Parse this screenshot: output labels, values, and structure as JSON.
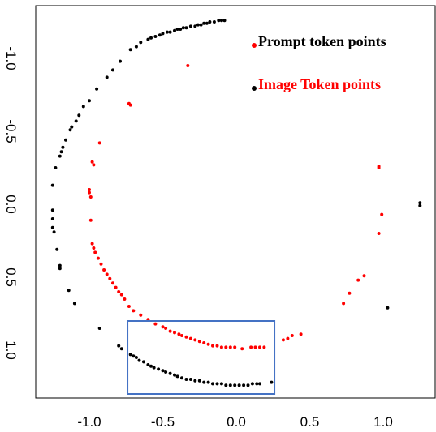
{
  "chart_data": {
    "type": "scatter",
    "title": "",
    "xlabel": "",
    "ylabel": "",
    "xlim": [
      -1.38,
      1.3
    ],
    "ylim": [
      -1.38,
      1.31
    ],
    "y_axis_inverted": true,
    "y_tick_labels_rotated": true,
    "x_ticks": [
      "-1.0",
      "-0.5",
      "0.0",
      "0.5",
      "1.0"
    ],
    "y_ticks": [
      "-1.0",
      "-0.5",
      "0.0",
      "0.5",
      "1.0"
    ],
    "grid": false,
    "legend": {
      "position": "top-right",
      "entries": [
        {
          "marker_color": "#ff0000",
          "label": "Prompt token points",
          "text_color": "#000000"
        },
        {
          "marker_color": "#000000",
          "label": "Image Token points",
          "text_color": "#ff0000"
        }
      ]
    },
    "highlight_box": {
      "color": "#4472c4",
      "x_range": [
        -0.74,
        0.26
      ],
      "y_range": [
        0.8,
        1.3
      ]
    },
    "series": [
      {
        "color": "#ff0000",
        "points": [
          [
            -0.33,
            -0.95
          ],
          [
            -0.73,
            -0.69
          ],
          [
            -0.72,
            -0.68
          ],
          [
            -0.93,
            -0.42
          ],
          [
            -0.98,
            -0.29
          ],
          [
            -0.97,
            -0.27
          ],
          [
            -1.0,
            -0.1
          ],
          [
            -1.0,
            -0.08
          ],
          [
            -0.99,
            -0.05
          ],
          [
            -0.99,
            0.11
          ],
          [
            -0.98,
            0.27
          ],
          [
            -0.97,
            0.3
          ],
          [
            -0.96,
            0.33
          ],
          [
            -0.94,
            0.37
          ],
          [
            -0.92,
            0.41
          ],
          [
            -0.9,
            0.45
          ],
          [
            -0.88,
            0.48
          ],
          [
            -0.86,
            0.51
          ],
          [
            -0.84,
            0.54
          ],
          [
            -0.82,
            0.57
          ],
          [
            -0.8,
            0.6
          ],
          [
            -0.78,
            0.62
          ],
          [
            -0.76,
            0.65
          ],
          [
            -0.73,
            0.7
          ],
          [
            -0.7,
            0.73
          ],
          [
            -0.65,
            0.76
          ],
          [
            -0.6,
            0.79
          ],
          [
            -0.55,
            0.82
          ],
          [
            -0.5,
            0.84
          ],
          [
            -0.48,
            0.85
          ],
          [
            -0.45,
            0.87
          ],
          [
            -0.42,
            0.88
          ],
          [
            -0.39,
            0.89
          ],
          [
            -0.37,
            0.9
          ],
          [
            -0.34,
            0.91
          ],
          [
            -0.31,
            0.92
          ],
          [
            -0.28,
            0.93
          ],
          [
            -0.25,
            0.94
          ],
          [
            -0.22,
            0.95
          ],
          [
            -0.19,
            0.96
          ],
          [
            -0.16,
            0.97
          ],
          [
            -0.13,
            0.97
          ],
          [
            -0.1,
            0.98
          ],
          [
            -0.07,
            0.98
          ],
          [
            -0.04,
            0.98
          ],
          [
            -0.01,
            0.98
          ],
          [
            0.04,
            0.99
          ],
          [
            0.1,
            0.98
          ],
          [
            0.13,
            0.98
          ],
          [
            0.16,
            0.98
          ],
          [
            0.19,
            0.98
          ],
          [
            0.32,
            0.93
          ],
          [
            0.35,
            0.92
          ],
          [
            0.38,
            0.9
          ],
          [
            0.44,
            0.89
          ],
          [
            0.73,
            0.68
          ],
          [
            0.77,
            0.61
          ],
          [
            0.83,
            0.52
          ],
          [
            0.87,
            0.49
          ],
          [
            0.97,
            0.2
          ],
          [
            0.99,
            0.07
          ],
          [
            0.97,
            -0.25
          ],
          [
            0.97,
            -0.26
          ]
        ]
      },
      {
        "color": "#000000",
        "points": [
          [
            -0.08,
            -1.26
          ],
          [
            -0.1,
            -1.26
          ],
          [
            -0.12,
            -1.26
          ],
          [
            -0.15,
            -1.25
          ],
          [
            -0.18,
            -1.25
          ],
          [
            -0.2,
            -1.24
          ],
          [
            -0.22,
            -1.24
          ],
          [
            -0.24,
            -1.23
          ],
          [
            -0.26,
            -1.23
          ],
          [
            -0.28,
            -1.22
          ],
          [
            -0.31,
            -1.22
          ],
          [
            -0.34,
            -1.21
          ],
          [
            -0.36,
            -1.21
          ],
          [
            -0.38,
            -1.2
          ],
          [
            -0.4,
            -1.2
          ],
          [
            -0.42,
            -1.19
          ],
          [
            -0.45,
            -1.18
          ],
          [
            -0.47,
            -1.18
          ],
          [
            -0.5,
            -1.17
          ],
          [
            -0.52,
            -1.16
          ],
          [
            -0.55,
            -1.15
          ],
          [
            -0.58,
            -1.14
          ],
          [
            -0.6,
            -1.13
          ],
          [
            -0.65,
            -1.11
          ],
          [
            -0.68,
            -1.08
          ],
          [
            -0.72,
            -1.06
          ],
          [
            -0.79,
            -0.98
          ],
          [
            -0.84,
            -0.92
          ],
          [
            -0.88,
            -0.87
          ],
          [
            -0.95,
            -0.79
          ],
          [
            -1.0,
            -0.71
          ],
          [
            -1.04,
            -0.67
          ],
          [
            -1.07,
            -0.61
          ],
          [
            -1.09,
            -0.57
          ],
          [
            -1.12,
            -0.53
          ],
          [
            -1.13,
            -0.51
          ],
          [
            -1.16,
            -0.44
          ],
          [
            -1.18,
            -0.39
          ],
          [
            -1.19,
            -0.36
          ],
          [
            -1.2,
            -0.33
          ],
          [
            -1.23,
            -0.25
          ],
          [
            -1.25,
            -0.13
          ],
          [
            -1.25,
            0.04
          ],
          [
            -1.25,
            0.1
          ],
          [
            -1.25,
            0.16
          ],
          [
            -1.24,
            0.19
          ],
          [
            -1.22,
            0.31
          ],
          [
            -1.2,
            0.42
          ],
          [
            -1.2,
            0.44
          ],
          [
            -1.14,
            0.59
          ],
          [
            -1.1,
            0.68
          ],
          [
            -0.93,
            0.85
          ],
          [
            -0.8,
            0.97
          ],
          [
            -0.78,
            0.99
          ],
          [
            -0.72,
            1.03
          ],
          [
            -0.7,
            1.04
          ],
          [
            -0.68,
            1.05
          ],
          [
            -0.66,
            1.07
          ],
          [
            -0.63,
            1.08
          ],
          [
            -0.6,
            1.1
          ],
          [
            -0.58,
            1.11
          ],
          [
            -0.56,
            1.12
          ],
          [
            -0.53,
            1.13
          ],
          [
            -0.5,
            1.14
          ],
          [
            -0.48,
            1.15
          ],
          [
            -0.45,
            1.16
          ],
          [
            -0.42,
            1.17
          ],
          [
            -0.4,
            1.18
          ],
          [
            -0.37,
            1.19
          ],
          [
            -0.34,
            1.2
          ],
          [
            -0.31,
            1.2
          ],
          [
            -0.28,
            1.21
          ],
          [
            -0.25,
            1.21
          ],
          [
            -0.22,
            1.22
          ],
          [
            -0.19,
            1.22
          ],
          [
            -0.16,
            1.23
          ],
          [
            -0.13,
            1.23
          ],
          [
            -0.1,
            1.23
          ],
          [
            -0.07,
            1.24
          ],
          [
            -0.04,
            1.24
          ],
          [
            -0.01,
            1.24
          ],
          [
            0.02,
            1.24
          ],
          [
            0.05,
            1.24
          ],
          [
            0.08,
            1.24
          ],
          [
            0.11,
            1.23
          ],
          [
            0.14,
            1.23
          ],
          [
            0.16,
            1.23
          ],
          [
            0.24,
            1.22
          ],
          [
            1.03,
            0.71
          ],
          [
            1.25,
            -0.01
          ],
          [
            1.25,
            0.01
          ]
        ]
      }
    ]
  }
}
